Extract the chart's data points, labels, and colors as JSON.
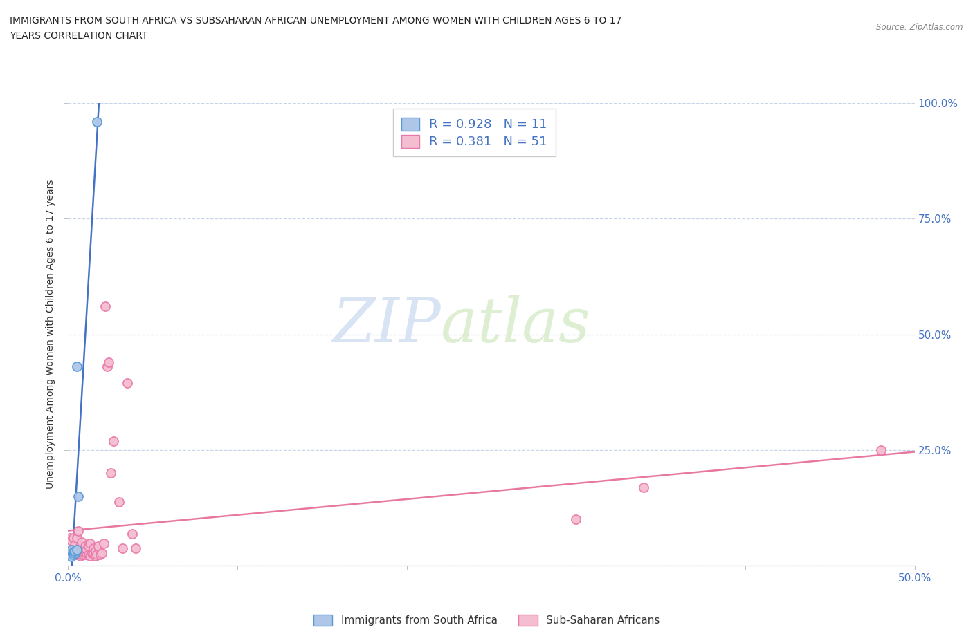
{
  "title_line1": "IMMIGRANTS FROM SOUTH AFRICA VS SUBSAHARAN AFRICAN UNEMPLOYMENT AMONG WOMEN WITH CHILDREN AGES 6 TO 17",
  "title_line2": "YEARS CORRELATION CHART",
  "source_text": "Source: ZipAtlas.com",
  "ylabel": "Unemployment Among Women with Children Ages 6 to 17 years",
  "xlim": [
    0.0,
    0.5
  ],
  "ylim": [
    0.0,
    1.0
  ],
  "xtick_positions": [
    0.0,
    0.1,
    0.2,
    0.3,
    0.4,
    0.5
  ],
  "xticklabels": [
    "0.0%",
    "",
    "",
    "",
    "",
    "50.0%"
  ],
  "ytick_positions": [
    0.0,
    0.25,
    0.5,
    0.75,
    1.0
  ],
  "yticklabels_right": [
    "",
    "25.0%",
    "50.0%",
    "75.0%",
    "100.0%"
  ],
  "watermark_top": "ZIP",
  "watermark_bot": "atlas",
  "blue_color": "#aec6e8",
  "pink_color": "#f5bdd0",
  "blue_edge_color": "#5b9bd5",
  "pink_edge_color": "#e87aab",
  "blue_line_color": "#4472c4",
  "pink_line_color": "#e878a0",
  "blue_R": 0.928,
  "blue_N": 11,
  "pink_R": 0.381,
  "pink_N": 51,
  "blue_scatter_x": [
    0.001,
    0.002,
    0.002,
    0.003,
    0.003,
    0.004,
    0.004,
    0.005,
    0.005,
    0.006,
    0.017
  ],
  "blue_scatter_y": [
    0.025,
    0.02,
    0.035,
    0.025,
    0.03,
    0.028,
    0.032,
    0.035,
    0.43,
    0.15,
    0.96
  ],
  "pink_scatter_x": [
    0.001,
    0.002,
    0.002,
    0.003,
    0.003,
    0.003,
    0.004,
    0.004,
    0.005,
    0.005,
    0.005,
    0.006,
    0.006,
    0.007,
    0.007,
    0.008,
    0.008,
    0.008,
    0.009,
    0.009,
    0.01,
    0.01,
    0.011,
    0.011,
    0.012,
    0.012,
    0.013,
    0.013,
    0.014,
    0.015,
    0.015,
    0.016,
    0.016,
    0.017,
    0.018,
    0.019,
    0.02,
    0.021,
    0.022,
    0.023,
    0.024,
    0.025,
    0.027,
    0.03,
    0.032,
    0.035,
    0.038,
    0.04,
    0.3,
    0.34,
    0.48
  ],
  "pink_scatter_y": [
    0.06,
    0.03,
    0.055,
    0.03,
    0.04,
    0.06,
    0.025,
    0.045,
    0.025,
    0.035,
    0.06,
    0.025,
    0.075,
    0.022,
    0.042,
    0.025,
    0.032,
    0.052,
    0.025,
    0.032,
    0.025,
    0.042,
    0.028,
    0.035,
    0.025,
    0.042,
    0.022,
    0.048,
    0.028,
    0.028,
    0.038,
    0.022,
    0.032,
    0.025,
    0.042,
    0.025,
    0.028,
    0.048,
    0.56,
    0.43,
    0.44,
    0.2,
    0.27,
    0.138,
    0.038,
    0.395,
    0.07,
    0.038,
    0.1,
    0.17,
    0.25
  ],
  "background_color": "#ffffff",
  "grid_color": "#c8d4e8",
  "legend_blue_label": "Immigrants from South Africa",
  "legend_pink_label": "Sub-Saharan Africans",
  "marker_size": 90,
  "marker_linewidth": 1.2
}
